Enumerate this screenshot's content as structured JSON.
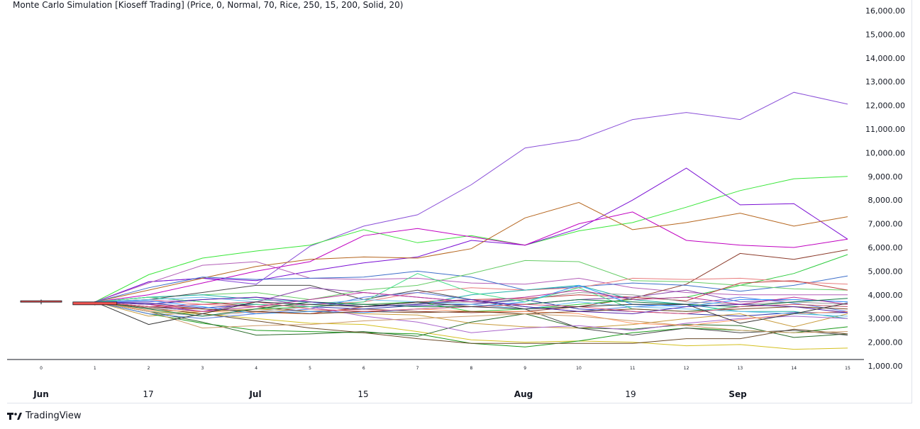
{
  "chart_data": {
    "type": "line",
    "title": "Monte Carlo Simulation [Kioseff Trading] (Price, 0, Normal, 70, Rice, 250, 15, 200, Solid, 20)",
    "y_ticks": [
      16000,
      15000,
      14000,
      13000,
      12000,
      11000,
      10000,
      9000,
      8000,
      7000,
      6000,
      5000,
      4000,
      3000,
      2000,
      1000
    ],
    "y_tick_labels": [
      "16,000.00",
      "15,000.00",
      "14,000.00",
      "13,000.00",
      "12,000.00",
      "11,000.00",
      "10,000.00",
      "9,000.00",
      "8,000.00",
      "7,000.00",
      "6,000.00",
      "5,000.00",
      "4,000.00",
      "3,000.00",
      "2,000.00",
      "1,000.00"
    ],
    "ylim": [
      1000,
      16000
    ],
    "x": [
      0,
      1,
      2,
      3,
      4,
      5,
      6,
      7,
      8,
      9,
      10,
      11,
      12,
      13,
      14,
      15
    ],
    "x_tick_labels": [
      "0",
      "1",
      "2",
      "3",
      "4",
      "5",
      "6",
      "7",
      "8",
      "9",
      "10",
      "11",
      "12",
      "13",
      "14",
      "15"
    ],
    "date_labels": [
      "Jun",
      "17",
      "Jul",
      "15",
      "Aug",
      "19",
      "Sep"
    ],
    "candles": [
      {
        "open": 3700,
        "close": 3750,
        "high": 3800,
        "low": 3600,
        "color": "#ef5350"
      },
      {
        "open": 3700,
        "close": 3580,
        "high": 3720,
        "low": 3560,
        "color": "#ef5350"
      }
    ],
    "series": [
      {
        "color": "#8a4fd8",
        "values": [
          3720,
          3700,
          4550,
          4700,
          4450,
          6050,
          6900,
          7380,
          8650,
          10200,
          10550,
          11400,
          11700,
          11400,
          12550,
          12050
        ]
      },
      {
        "color": "#39e639",
        "values": [
          3720,
          3700,
          4850,
          5550,
          5850,
          6100,
          6750,
          6200,
          6500,
          6100,
          6700,
          7050,
          7700,
          8400,
          8900,
          9000
        ]
      },
      {
        "color": "#7a0fd4",
        "values": [
          3720,
          3700,
          4550,
          4700,
          4600,
          5000,
          5350,
          5600,
          6300,
          6100,
          6800,
          8000,
          9350,
          7800,
          7850,
          6350
        ]
      },
      {
        "color": "#b35fb8",
        "values": [
          3720,
          3700,
          4500,
          5250,
          5400,
          4700,
          4650,
          4700,
          4500,
          4450,
          4700,
          4300,
          4100,
          4000,
          4000,
          4000
        ]
      },
      {
        "color": "#c000c0",
        "values": [
          3720,
          3700,
          4000,
          4500,
          5000,
          5400,
          6500,
          6800,
          6450,
          6100,
          7000,
          7500,
          6300,
          6100,
          6000,
          6350
        ]
      },
      {
        "color": "#b5651d",
        "values": [
          3720,
          3700,
          4200,
          4700,
          5200,
          5500,
          5600,
          5550,
          5950,
          7250,
          7900,
          6750,
          7050,
          7450,
          6900,
          7300
        ]
      },
      {
        "color": "#8b3a2a",
        "values": [
          3720,
          3700,
          3900,
          3700,
          3500,
          3300,
          3400,
          3300,
          3250,
          3300,
          3500,
          3850,
          4450,
          5750,
          5500,
          5900
        ]
      },
      {
        "color": "#2ecc40",
        "values": [
          3720,
          3700,
          3500,
          3300,
          3400,
          3500,
          3600,
          3700,
          3300,
          3400,
          3600,
          3800,
          3900,
          4400,
          4900,
          5700
        ]
      },
      {
        "color": "#3d6ec9",
        "values": [
          3720,
          3700,
          4300,
          4750,
          4650,
          4700,
          4750,
          5000,
          4750,
          4200,
          4350,
          4500,
          4400,
          4150,
          4400,
          4800
        ]
      },
      {
        "color": "#66cc66",
        "values": [
          3720,
          3700,
          3900,
          4000,
          4100,
          3800,
          4200,
          4400,
          4900,
          5450,
          5400,
          4600,
          4550,
          4400,
          4250,
          4200
        ]
      },
      {
        "color": "#e87c7c",
        "values": [
          3720,
          3700,
          3800,
          3600,
          3500,
          3600,
          3700,
          4100,
          4300,
          4200,
          4300,
          4700,
          4650,
          4700,
          4550,
          4450
        ]
      },
      {
        "color": "#c04040",
        "values": [
          3720,
          3700,
          3600,
          3400,
          3300,
          3200,
          3500,
          3700,
          3800,
          3850,
          4000,
          3900,
          3750,
          4500,
          4600,
          4200
        ]
      },
      {
        "color": "#3333aa",
        "values": [
          3720,
          3700,
          3650,
          3450,
          3600,
          3500,
          3400,
          3550,
          3600,
          3800,
          3400,
          3300,
          3200,
          3100,
          3250,
          3250
        ]
      },
      {
        "color": "#c89b3c",
        "values": [
          3720,
          3700,
          3100,
          3300,
          3400,
          3300,
          3200,
          3150,
          2800,
          2650,
          2600,
          2750,
          3000,
          3200,
          2650,
          3200
        ]
      },
      {
        "color": "#d4c020",
        "values": [
          3720,
          3700,
          3300,
          3200,
          3000,
          2800,
          2750,
          2450,
          2100,
          2000,
          2050,
          2000,
          1850,
          1900,
          1700,
          1750
        ]
      },
      {
        "color": "#1a9a1a",
        "values": [
          3720,
          3700,
          3200,
          2800,
          2500,
          2450,
          2400,
          2350,
          1950,
          1800,
          2050,
          2400,
          2600,
          2500,
          2400,
          2650
        ]
      },
      {
        "color": "#2a6c2a",
        "values": [
          3720,
          3700,
          3300,
          2850,
          2300,
          2350,
          2450,
          2250,
          2850,
          3200,
          2600,
          2550,
          2750,
          2700,
          2200,
          2350
        ]
      },
      {
        "color": "#6b4a2a",
        "values": [
          3720,
          3700,
          3450,
          3200,
          2900,
          2600,
          2400,
          2150,
          1950,
          1950,
          1950,
          1950,
          2150,
          2150,
          2550,
          2350
        ]
      },
      {
        "color": "#20b2aa",
        "values": [
          3720,
          3700,
          3900,
          4000,
          3800,
          3700,
          3500,
          3600,
          4000,
          4200,
          4400,
          3800,
          3600,
          3300,
          3300,
          3000
        ]
      },
      {
        "color": "#4a4a4a",
        "values": [
          3720,
          3700,
          3800,
          4100,
          4400,
          4400,
          3800,
          4200,
          3800,
          3400,
          2600,
          2300,
          2600,
          2400,
          2500,
          2300
        ]
      },
      {
        "color": "#8844aa",
        "values": [
          3720,
          3700,
          3500,
          3300,
          3700,
          4300,
          4100,
          3900,
          3700,
          3600,
          3800,
          3900,
          4200,
          3700,
          3800,
          3700
        ]
      },
      {
        "color": "#5577dd",
        "values": [
          3720,
          3700,
          3200,
          3000,
          3200,
          3400,
          3900,
          4100,
          3800,
          3500,
          3300,
          3500,
          3600,
          3900,
          3650,
          3300
        ]
      },
      {
        "color": "#999999",
        "values": [
          3720,
          3700,
          3300,
          3100,
          3300,
          3500,
          3600,
          3650,
          3700,
          3800,
          4100,
          4000,
          3700,
          3600,
          3700,
          3600
        ]
      },
      {
        "color": "#aa66cc",
        "values": [
          3720,
          3700,
          3700,
          3800,
          3900,
          3500,
          3100,
          2850,
          2400,
          2600,
          2700,
          2500,
          2800,
          3000,
          3100,
          3000
        ]
      },
      {
        "color": "#ff9966",
        "values": [
          3720,
          3700,
          3350,
          3300,
          3250,
          3200,
          3300,
          3400,
          3300,
          3300,
          3200,
          2800,
          2700,
          2950,
          3200,
          3300
        ]
      },
      {
        "color": "#3399ff",
        "values": [
          3720,
          3700,
          3750,
          3500,
          3200,
          3300,
          3250,
          3400,
          3500,
          3700,
          4400,
          3600,
          3500,
          3800,
          3800,
          3700
        ]
      },
      {
        "color": "#44dd88",
        "values": [
          3720,
          3700,
          3900,
          3700,
          3600,
          3500,
          3700,
          4900,
          4100,
          3700,
          4300,
          3400,
          3300,
          3500,
          3600,
          3500
        ]
      },
      {
        "color": "#774422",
        "values": [
          3720,
          3700,
          3500,
          3400,
          3300,
          3200,
          3300,
          3250,
          3300,
          3200,
          3300,
          3400,
          3300,
          3400,
          3500,
          3400
        ]
      },
      {
        "color": "#bb3399",
        "values": [
          3720,
          3700,
          3600,
          3300,
          3500,
          3800,
          4100,
          3900,
          3700,
          3900,
          4200,
          3800,
          3900,
          3600,
          3900,
          3600
        ]
      },
      {
        "color": "#66bbee",
        "values": [
          3720,
          3700,
          3800,
          3900,
          3700,
          3600,
          3800,
          3700,
          3600,
          3400,
          3700,
          3500,
          3400,
          3300,
          3200,
          3100
        ]
      },
      {
        "color": "#cc9966",
        "values": [
          3720,
          3700,
          3300,
          2600,
          2700,
          2750,
          2900,
          3000,
          3100,
          3200,
          3100,
          2900,
          2700,
          2500,
          2400,
          2450
        ]
      },
      {
        "color": "#117744",
        "values": [
          3720,
          3700,
          3400,
          3100,
          3400,
          3700,
          3600,
          3500,
          3500,
          3600,
          3800,
          3700,
          3600,
          3500,
          3700,
          3850
        ]
      },
      {
        "color": "#dd5577",
        "values": [
          3720,
          3700,
          3500,
          3600,
          3700,
          3400,
          3300,
          3400,
          3500,
          3600,
          3500,
          3300,
          3200,
          3500,
          3600,
          3500
        ]
      },
      {
        "color": "#5522aa",
        "values": [
          3720,
          3700,
          3600,
          3800,
          3900,
          3700,
          3500,
          3600,
          3800,
          3500,
          3300,
          3200,
          3500,
          3600,
          3500,
          3250
        ]
      },
      {
        "color": "#333333",
        "values": [
          3720,
          3700,
          2750,
          3200,
          3700,
          3600,
          3500,
          3700,
          3500,
          3400,
          3500,
          3600,
          3600,
          2800,
          3200,
          3650
        ]
      }
    ]
  },
  "brand": {
    "logo_icon": "tradingview-logo-icon",
    "name": "TradingView"
  }
}
